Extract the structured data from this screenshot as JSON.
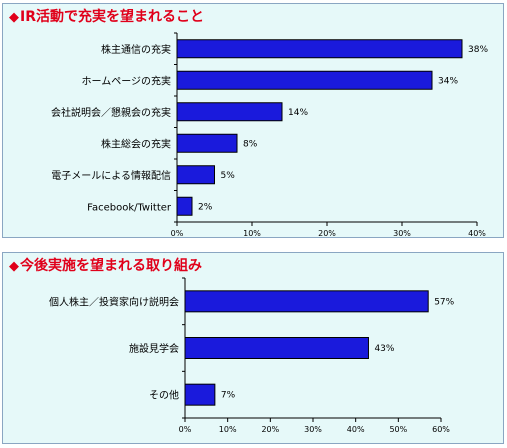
{
  "chart_data": [
    {
      "type": "bar",
      "orientation": "horizontal",
      "title": "IR活動で充実を望まれること",
      "title_marker": "◆",
      "categories": [
        "株主通信の充実",
        "ホームページの充実",
        "会社説明会／懇親会の充実",
        "株主総会の充実",
        "電子メールによる情報配信",
        "Facebook/Twitter"
      ],
      "values": [
        38,
        34,
        14,
        8,
        5,
        2
      ],
      "value_labels": [
        "38%",
        "34%",
        "14%",
        "8%",
        "5%",
        "2%"
      ],
      "xlim": [
        0,
        40
      ],
      "ticks": [
        0,
        10,
        20,
        30,
        40
      ],
      "tick_labels": [
        "0%",
        "10%",
        "20%",
        "30%",
        "40%"
      ],
      "bar_color": "#1a1adc",
      "grid": false
    },
    {
      "type": "bar",
      "orientation": "horizontal",
      "title": "今後実施を望まれる取り組み",
      "title_marker": "◆",
      "categories": [
        "個人株主／投資家向け説明会",
        "施設見学会",
        "その他"
      ],
      "values": [
        57,
        43,
        7
      ],
      "value_labels": [
        "57%",
        "43%",
        "7%"
      ],
      "xlim": [
        0,
        60
      ],
      "ticks": [
        0,
        10,
        20,
        30,
        40,
        50,
        60
      ],
      "tick_labels": [
        "0%",
        "10%",
        "20%",
        "30%",
        "40%",
        "50%",
        "60%"
      ],
      "bar_color": "#1a1adc",
      "grid": false
    }
  ],
  "colors": {
    "title": "#e0001a",
    "panel_background": "#e6f9f9",
    "panel_border": "#8aa6c2"
  }
}
